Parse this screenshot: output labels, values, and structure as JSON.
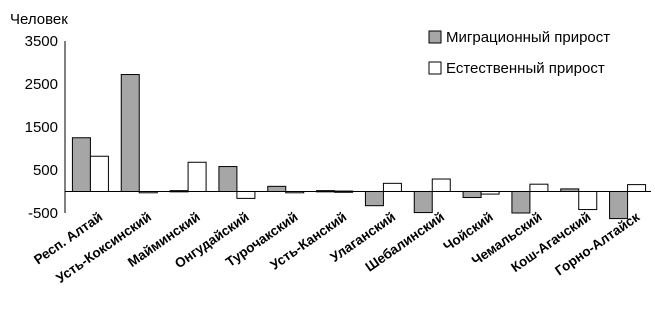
{
  "chart_data": {
    "type": "bar",
    "title": "",
    "xlabel": "",
    "ylabel": "Человек",
    "ylim": [
      -500,
      3500
    ],
    "yticks": [
      3500,
      2500,
      1500,
      500,
      -500
    ],
    "grid": false,
    "legend_position": "top-right",
    "categories": [
      "Респ. Алтай",
      "Усть-Коксинский",
      "Майминский",
      "Онгудайский",
      "Турочакский",
      "Усть-Канский",
      "Улаганский",
      "Шебалинский",
      "Чойский",
      "Чемальский",
      "Кош-Агачский",
      "Горно-Алтайск"
    ],
    "series": [
      {
        "name": "Миграционный прирост",
        "color": "#a6a6a6",
        "values": [
          1250,
          2720,
          20,
          580,
          120,
          20,
          -330,
          -490,
          -140,
          -500,
          60,
          -630
        ]
      },
      {
        "name": "Естественный прирост",
        "color": "#ffffff",
        "values": [
          820,
          -30,
          680,
          -160,
          -30,
          10,
          190,
          290,
          -60,
          170,
          -420,
          160
        ]
      }
    ]
  }
}
